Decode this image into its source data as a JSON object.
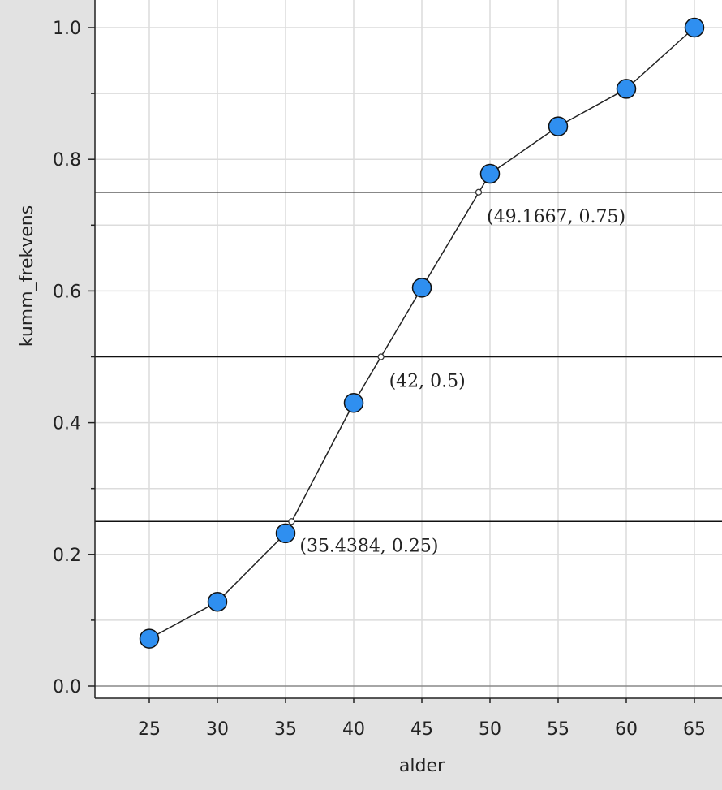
{
  "chart_data": {
    "type": "line",
    "title": "",
    "xlabel": "alder",
    "ylabel": "kumm_frekvens",
    "xlim": [
      21,
      66
    ],
    "ylim": [
      -0.02,
      1.045
    ],
    "x_ticks": [
      25,
      30,
      35,
      40,
      45,
      50,
      55,
      60,
      65
    ],
    "x_tick_labels": [
      "25",
      "30",
      "35",
      "40",
      "45",
      "50",
      "55",
      "60",
      "65"
    ],
    "y_ticks": [
      0.0,
      0.2,
      0.4,
      0.6,
      0.8,
      1.0
    ],
    "y_tick_labels": [
      "0.0",
      "0.2",
      "0.4",
      "0.6",
      "0.8",
      "1.0"
    ],
    "grid": true,
    "series": [
      {
        "x": [
          25,
          30,
          35,
          40,
          45,
          50,
          55,
          60,
          65
        ],
        "y": [
          0.072,
          0.128,
          0.232,
          0.43,
          0.605,
          0.778,
          0.85,
          0.907,
          1.0
        ]
      }
    ],
    "reference_lines": [
      {
        "y": 0.25
      },
      {
        "y": 0.5
      },
      {
        "y": 0.75
      }
    ],
    "annotations": [
      {
        "x": 35.4384,
        "y": 0.25,
        "text": "(35.4384, 0.25)"
      },
      {
        "x": 42,
        "y": 0.5,
        "text": "(42, 0.5)"
      },
      {
        "x": 49.1667,
        "y": 0.75,
        "text": "(49.1667, 0.75)"
      }
    ],
    "colors": {
      "marker_fill": "#2f8ff0",
      "marker_stroke": "#111111",
      "line": "#222222",
      "grid": "#dcdcdc",
      "plot_background": "#ffffff",
      "page_background": "#e2e2e2"
    }
  }
}
